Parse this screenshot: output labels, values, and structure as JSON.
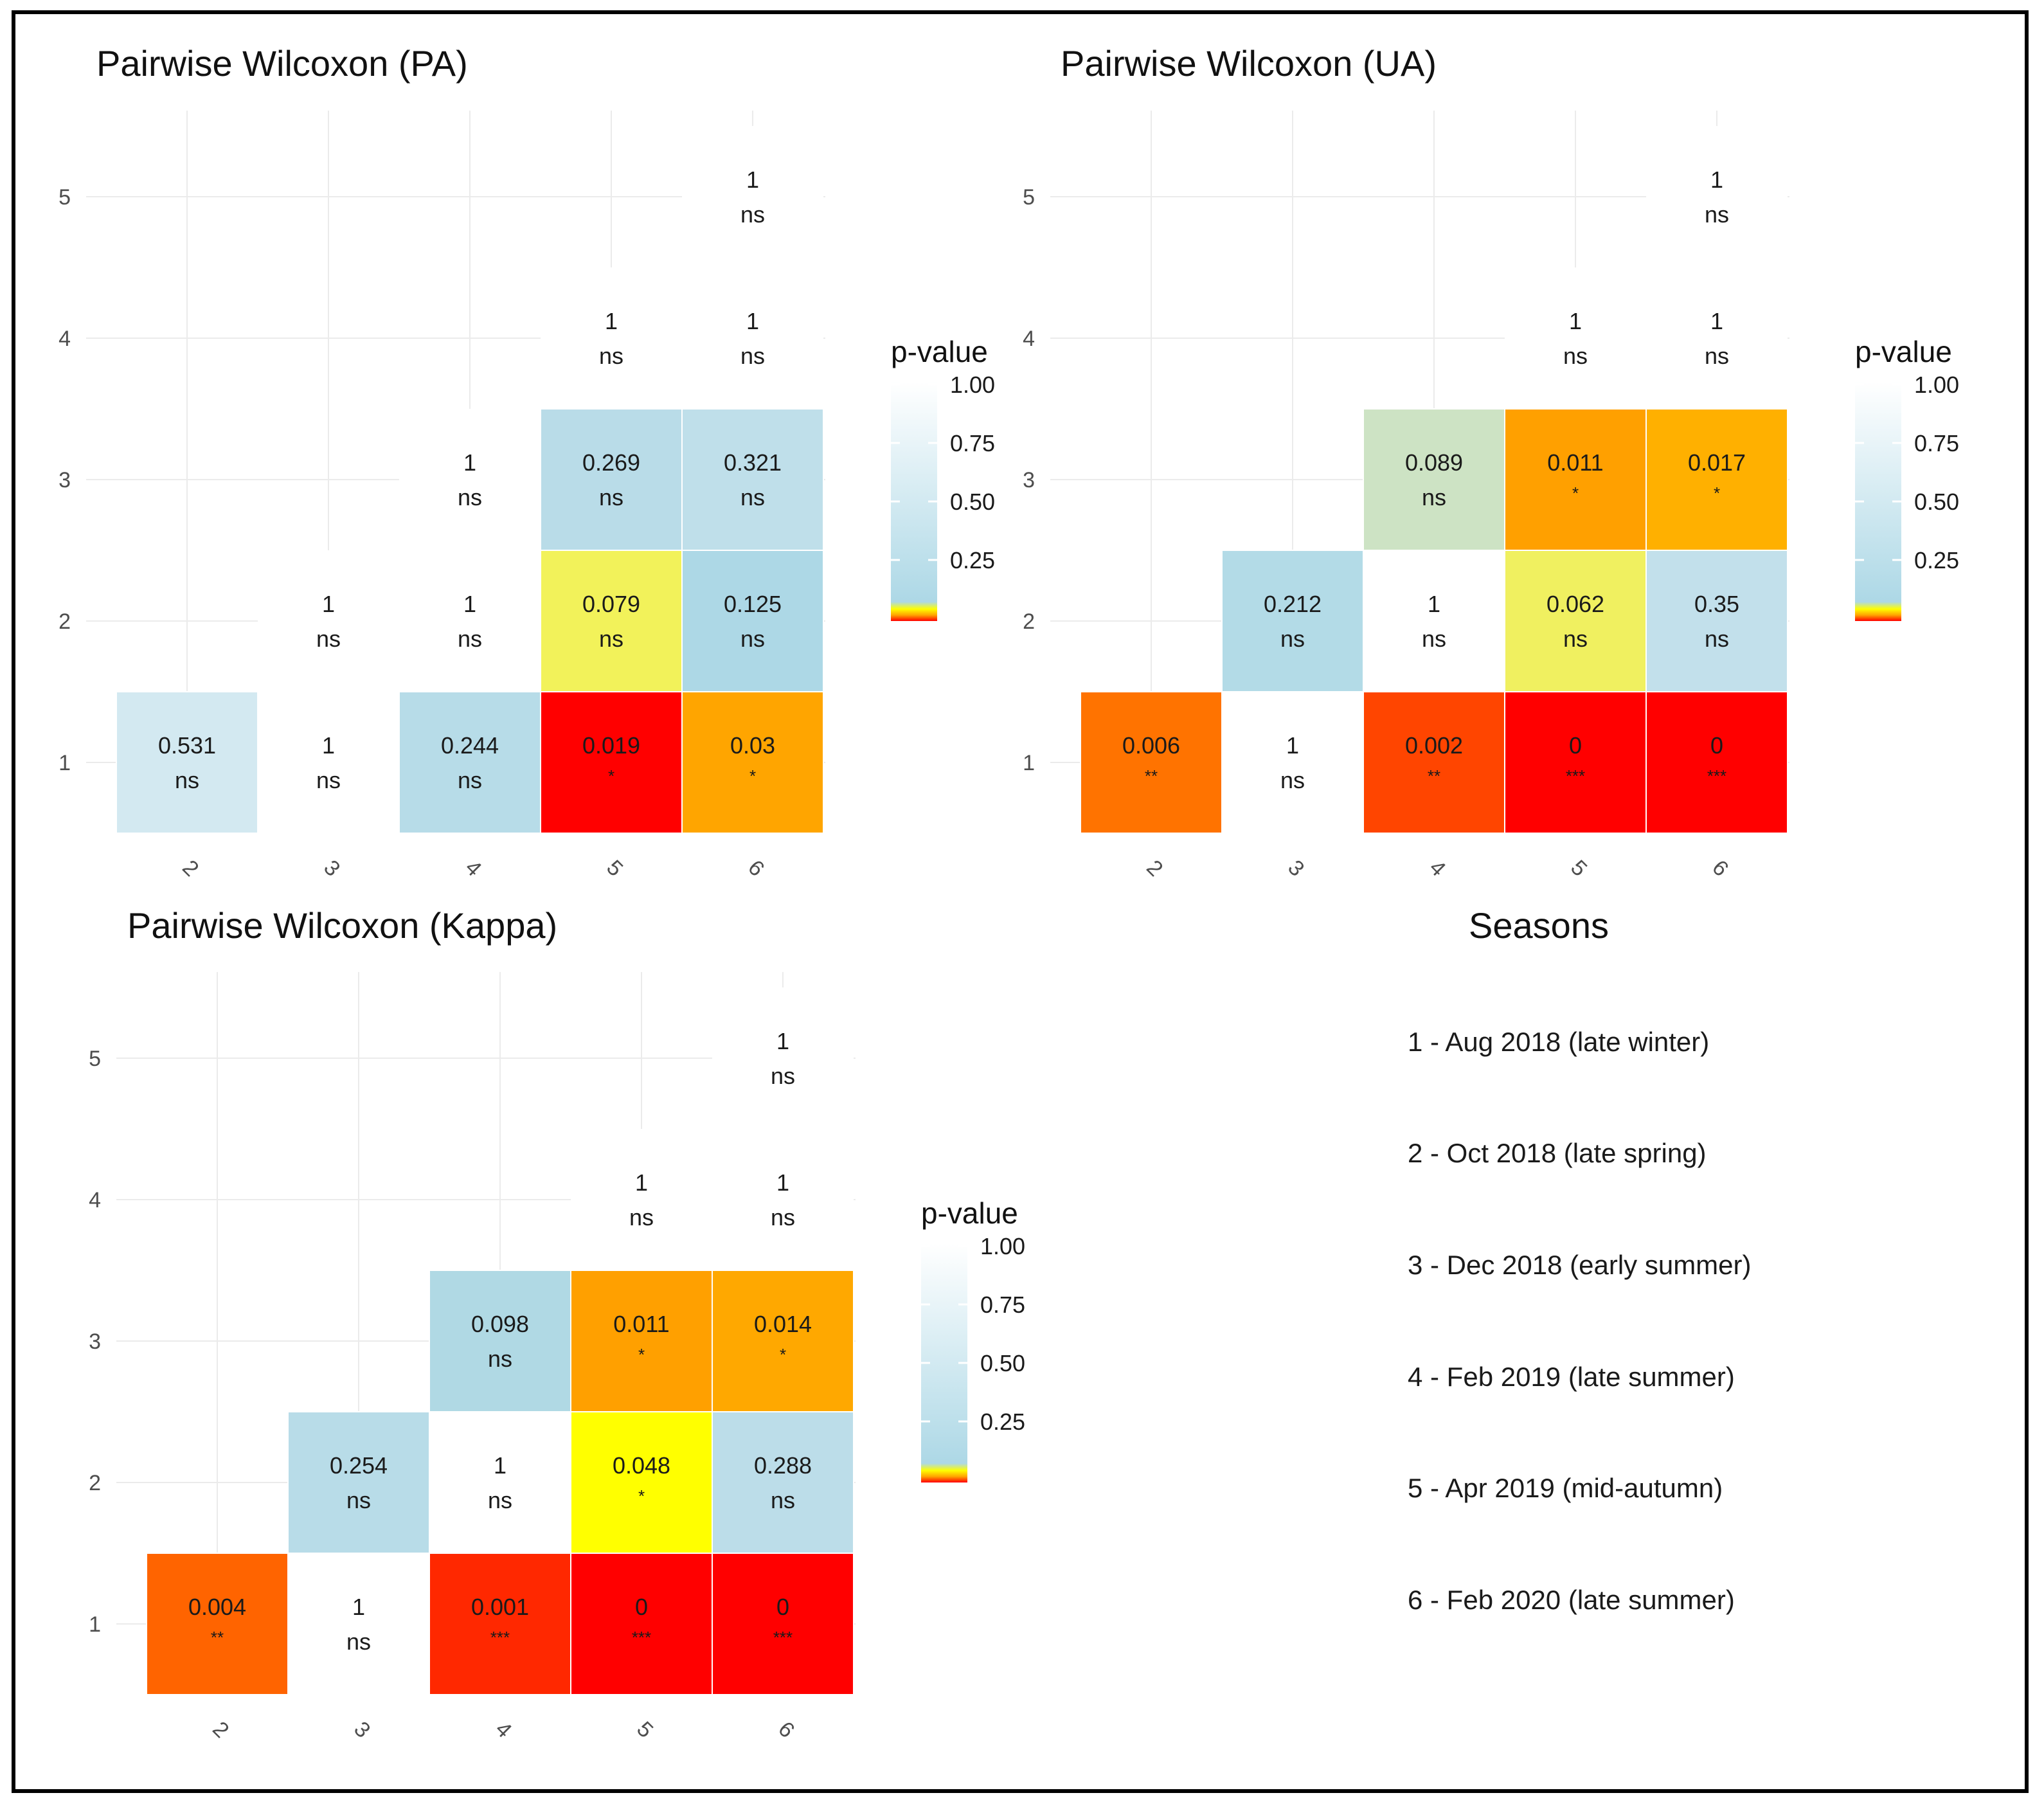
{
  "colors": {
    "grid": "#ebebeb",
    "scale_stops": [
      "#ff0000",
      "#ffa500",
      "#ffff00",
      "#add8e6",
      "#ffffff"
    ]
  },
  "chart_data": [
    {
      "type": "heatmap",
      "title": "Pairwise Wilcoxon (PA)",
      "x_categories": [
        "2",
        "3",
        "4",
        "5",
        "6"
      ],
      "y_categories": [
        "1",
        "2",
        "3",
        "4",
        "5"
      ],
      "cells": [
        {
          "x": "2",
          "y": "1",
          "p": "0.531",
          "sig": "ns",
          "color": "#d3e9f1"
        },
        {
          "x": "3",
          "y": "1",
          "p": "1",
          "sig": "ns",
          "color": ""
        },
        {
          "x": "4",
          "y": "1",
          "p": "0.244",
          "sig": "ns",
          "color": "#b7dce8"
        },
        {
          "x": "5",
          "y": "1",
          "p": "0.019",
          "sig": "*",
          "color": "#ff0000"
        },
        {
          "x": "6",
          "y": "1",
          "p": "0.03",
          "sig": "*",
          "color": "#ffa500"
        },
        {
          "x": "3",
          "y": "2",
          "p": "1",
          "sig": "ns",
          "color": ""
        },
        {
          "x": "4",
          "y": "2",
          "p": "1",
          "sig": "ns",
          "color": ""
        },
        {
          "x": "5",
          "y": "2",
          "p": "0.079",
          "sig": "ns",
          "color": "#f2f25a"
        },
        {
          "x": "6",
          "y": "2",
          "p": "0.125",
          "sig": "ns",
          "color": "#add8e6"
        },
        {
          "x": "4",
          "y": "3",
          "p": "1",
          "sig": "ns",
          "color": ""
        },
        {
          "x": "5",
          "y": "3",
          "p": "0.269",
          "sig": "ns",
          "color": "#b9dce8"
        },
        {
          "x": "6",
          "y": "3",
          "p": "0.321",
          "sig": "ns",
          "color": "#bfdfea"
        },
        {
          "x": "5",
          "y": "4",
          "p": "1",
          "sig": "ns",
          "color": ""
        },
        {
          "x": "6",
          "y": "4",
          "p": "1",
          "sig": "ns",
          "color": ""
        },
        {
          "x": "6",
          "y": "5",
          "p": "1",
          "sig": "ns",
          "color": ""
        }
      ],
      "legend": {
        "title": "p-value",
        "ticks": [
          "1.00",
          "0.75",
          "0.50",
          "0.25"
        ],
        "position": "right"
      }
    },
    {
      "type": "heatmap",
      "title": "Pairwise Wilcoxon (UA)",
      "x_categories": [
        "2",
        "3",
        "4",
        "5",
        "6"
      ],
      "y_categories": [
        "1",
        "2",
        "3",
        "4",
        "5"
      ],
      "cells": [
        {
          "x": "2",
          "y": "1",
          "p": "0.006",
          "sig": "**",
          "color": "#ff7300"
        },
        {
          "x": "3",
          "y": "1",
          "p": "1",
          "sig": "ns",
          "color": ""
        },
        {
          "x": "4",
          "y": "1",
          "p": "0.002",
          "sig": "**",
          "color": "#ff4500"
        },
        {
          "x": "5",
          "y": "1",
          "p": "0",
          "sig": "***",
          "color": "#ff0000"
        },
        {
          "x": "6",
          "y": "1",
          "p": "0",
          "sig": "***",
          "color": "#ff0000"
        },
        {
          "x": "3",
          "y": "2",
          "p": "0.212",
          "sig": "ns",
          "color": "#b3dbe7"
        },
        {
          "x": "4",
          "y": "2",
          "p": "1",
          "sig": "ns",
          "color": ""
        },
        {
          "x": "5",
          "y": "2",
          "p": "0.062",
          "sig": "ns",
          "color": "#f0f060"
        },
        {
          "x": "6",
          "y": "2",
          "p": "0.35",
          "sig": "ns",
          "color": "#c2e0eb"
        },
        {
          "x": "4",
          "y": "3",
          "p": "0.089",
          "sig": "ns",
          "color": "#cde3c4"
        },
        {
          "x": "5",
          "y": "3",
          "p": "0.011",
          "sig": "*",
          "color": "#ffa000"
        },
        {
          "x": "6",
          "y": "3",
          "p": "0.017",
          "sig": "*",
          "color": "#ffb000"
        },
        {
          "x": "5",
          "y": "4",
          "p": "1",
          "sig": "ns",
          "color": ""
        },
        {
          "x": "6",
          "y": "4",
          "p": "1",
          "sig": "ns",
          "color": ""
        },
        {
          "x": "6",
          "y": "5",
          "p": "1",
          "sig": "ns",
          "color": ""
        }
      ],
      "legend": {
        "title": "p-value",
        "ticks": [
          "1.00",
          "0.75",
          "0.50",
          "0.25"
        ],
        "position": "right"
      }
    },
    {
      "type": "heatmap",
      "title": "Pairwise Wilcoxon (Kappa)",
      "x_categories": [
        "2",
        "3",
        "4",
        "5",
        "6"
      ],
      "y_categories": [
        "1",
        "2",
        "3",
        "4",
        "5"
      ],
      "cells": [
        {
          "x": "2",
          "y": "1",
          "p": "0.004",
          "sig": "**",
          "color": "#ff6400"
        },
        {
          "x": "3",
          "y": "1",
          "p": "1",
          "sig": "ns",
          "color": ""
        },
        {
          "x": "4",
          "y": "1",
          "p": "0.001",
          "sig": "***",
          "color": "#ff2800"
        },
        {
          "x": "5",
          "y": "1",
          "p": "0",
          "sig": "***",
          "color": "#ff0000"
        },
        {
          "x": "6",
          "y": "1",
          "p": "0",
          "sig": "***",
          "color": "#ff0000"
        },
        {
          "x": "3",
          "y": "2",
          "p": "0.254",
          "sig": "ns",
          "color": "#b8dce8"
        },
        {
          "x": "4",
          "y": "2",
          "p": "1",
          "sig": "ns",
          "color": ""
        },
        {
          "x": "5",
          "y": "2",
          "p": "0.048",
          "sig": "*",
          "color": "#ffff00"
        },
        {
          "x": "6",
          "y": "2",
          "p": "0.288",
          "sig": "ns",
          "color": "#bcdde9"
        },
        {
          "x": "4",
          "y": "3",
          "p": "0.098",
          "sig": "ns",
          "color": "#b0d9e4"
        },
        {
          "x": "5",
          "y": "3",
          "p": "0.011",
          "sig": "*",
          "color": "#ffa000"
        },
        {
          "x": "6",
          "y": "3",
          "p": "0.014",
          "sig": "*",
          "color": "#ffa800"
        },
        {
          "x": "5",
          "y": "4",
          "p": "1",
          "sig": "ns",
          "color": ""
        },
        {
          "x": "6",
          "y": "4",
          "p": "1",
          "sig": "ns",
          "color": ""
        },
        {
          "x": "6",
          "y": "5",
          "p": "1",
          "sig": "ns",
          "color": ""
        }
      ],
      "legend": {
        "title": "p-value",
        "ticks": [
          "1.00",
          "0.75",
          "0.50",
          "0.25"
        ],
        "position": "right"
      }
    }
  ],
  "seasons": {
    "title": "Seasons",
    "items": [
      "1 - Aug 2018 (late winter)",
      "2 - Oct 2018 (late spring)",
      "3 - Dec 2018 (early summer)",
      "4 - Feb 2019 (late summer)",
      "5 - Apr 2019 (mid-autumn)",
      "6 - Feb 2020 (late summer)"
    ]
  }
}
